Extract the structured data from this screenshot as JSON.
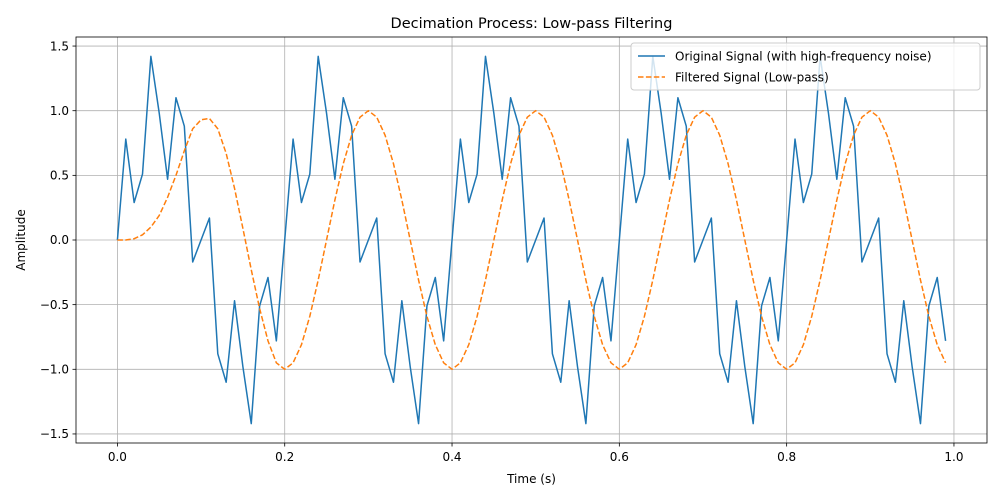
{
  "chart_data": {
    "type": "line",
    "title": "Decimation Process: Low-pass Filtering",
    "xlabel": "Time (s)",
    "ylabel": "Amplitude",
    "xlim": [
      -0.0495,
      1.0395
    ],
    "ylim": [
      -1.57,
      1.57
    ],
    "xticks": [
      0.0,
      0.2,
      0.4,
      0.6,
      0.8,
      1.0
    ],
    "xtick_labels": [
      "0.0",
      "0.2",
      "0.4",
      "0.6",
      "0.8",
      "1.0"
    ],
    "yticks": [
      -1.5,
      -1.0,
      -0.5,
      0.0,
      0.5,
      1.0,
      1.5
    ],
    "ytick_labels": [
      "−1.5",
      "−1.0",
      "−0.5",
      "0.0",
      "0.5",
      "1.0",
      "1.5"
    ],
    "grid": true,
    "legend_position": "top-right",
    "series": [
      {
        "name": "Original Signal (with high-frequency noise)",
        "color": "#1f77b4",
        "style": "solid",
        "x": [
          0.0,
          0.01,
          0.02,
          0.03,
          0.04,
          0.05,
          0.06,
          0.07,
          0.08,
          0.09,
          0.1,
          0.11,
          0.12,
          0.13,
          0.14,
          0.15,
          0.16,
          0.17,
          0.18,
          0.19,
          0.2,
          0.21,
          0.22,
          0.23,
          0.24,
          0.25,
          0.26,
          0.27,
          0.28,
          0.29,
          0.3,
          0.31,
          0.32,
          0.33,
          0.34,
          0.35,
          0.36,
          0.37,
          0.38,
          0.39,
          0.4,
          0.41,
          0.42,
          0.43,
          0.44,
          0.45,
          0.46,
          0.47,
          0.48,
          0.49,
          0.5,
          0.51,
          0.52,
          0.53,
          0.54,
          0.55,
          0.56,
          0.57,
          0.58,
          0.59,
          0.6,
          0.61,
          0.62,
          0.63,
          0.64,
          0.65,
          0.66,
          0.67,
          0.68,
          0.69,
          0.7,
          0.71,
          0.72,
          0.73,
          0.74,
          0.75,
          0.76,
          0.77,
          0.78,
          0.79,
          0.8,
          0.81,
          0.82,
          0.83,
          0.84,
          0.85,
          0.86,
          0.87,
          0.88,
          0.89,
          0.9,
          0.91,
          0.92,
          0.93,
          0.94,
          0.95,
          0.96,
          0.97,
          0.98,
          0.99
        ],
        "y": [
          0.0,
          0.78,
          0.29,
          0.51,
          1.42,
          0.98,
          0.47,
          1.1,
          0.88,
          -0.17,
          0.0,
          0.17,
          -0.88,
          -1.1,
          -0.47,
          -0.98,
          -1.42,
          -0.51,
          -0.29,
          -0.78,
          0.0,
          0.78,
          0.29,
          0.51,
          1.42,
          0.98,
          0.47,
          1.1,
          0.88,
          -0.17,
          0.0,
          0.17,
          -0.88,
          -1.1,
          -0.47,
          -0.98,
          -1.42,
          -0.51,
          -0.29,
          -0.78,
          0.0,
          0.78,
          0.29,
          0.51,
          1.42,
          0.98,
          0.47,
          1.1,
          0.88,
          -0.17,
          0.0,
          0.17,
          -0.88,
          -1.1,
          -0.47,
          -0.98,
          -1.42,
          -0.51,
          -0.29,
          -0.78,
          0.0,
          0.78,
          0.29,
          0.51,
          1.42,
          0.98,
          0.47,
          1.1,
          0.88,
          -0.17,
          0.0,
          0.17,
          -0.88,
          -1.1,
          -0.47,
          -0.98,
          -1.42,
          -0.51,
          -0.29,
          -0.78,
          0.0,
          0.78,
          0.29,
          0.51,
          1.42,
          0.98,
          0.47,
          1.1,
          0.88,
          -0.17,
          0.0,
          0.17,
          -0.88,
          -1.1,
          -0.47,
          -0.98,
          -1.42,
          -0.51,
          -0.29,
          -0.78
        ]
      },
      {
        "name": "Filtered Signal (Low-pass)",
        "color": "#ff7f0e",
        "style": "dashed",
        "x": [
          0.0,
          0.01,
          0.02,
          0.03,
          0.04,
          0.05,
          0.06,
          0.07,
          0.08,
          0.09,
          0.1,
          0.11,
          0.12,
          0.13,
          0.14,
          0.15,
          0.16,
          0.17,
          0.18,
          0.19,
          0.2,
          0.21,
          0.22,
          0.23,
          0.24,
          0.25,
          0.26,
          0.27,
          0.28,
          0.29,
          0.3,
          0.31,
          0.32,
          0.33,
          0.34,
          0.35,
          0.36,
          0.37,
          0.38,
          0.39,
          0.4,
          0.41,
          0.42,
          0.43,
          0.44,
          0.45,
          0.46,
          0.47,
          0.48,
          0.49,
          0.5,
          0.51,
          0.52,
          0.53,
          0.54,
          0.55,
          0.56,
          0.57,
          0.58,
          0.59,
          0.6,
          0.61,
          0.62,
          0.63,
          0.64,
          0.65,
          0.66,
          0.67,
          0.68,
          0.69,
          0.7,
          0.71,
          0.72,
          0.73,
          0.74,
          0.75,
          0.76,
          0.77,
          0.78,
          0.79,
          0.8,
          0.81,
          0.82,
          0.83,
          0.84,
          0.85,
          0.86,
          0.87,
          0.88,
          0.89,
          0.9,
          0.91,
          0.92,
          0.93,
          0.94,
          0.95,
          0.96,
          0.97,
          0.98,
          0.99
        ],
        "y": [
          0.0,
          0.0,
          0.01,
          0.04,
          0.1,
          0.19,
          0.33,
          0.5,
          0.69,
          0.86,
          0.93,
          0.94,
          0.86,
          0.67,
          0.4,
          0.09,
          -0.23,
          -0.53,
          -0.78,
          -0.95,
          -1.0,
          -0.95,
          -0.81,
          -0.59,
          -0.31,
          0.0,
          0.31,
          0.59,
          0.81,
          0.95,
          1.0,
          0.95,
          0.81,
          0.59,
          0.31,
          0.0,
          -0.31,
          -0.59,
          -0.81,
          -0.95,
          -1.0,
          -0.95,
          -0.81,
          -0.59,
          -0.31,
          0.0,
          0.31,
          0.59,
          0.81,
          0.95,
          1.0,
          0.95,
          0.81,
          0.59,
          0.31,
          0.0,
          -0.31,
          -0.59,
          -0.81,
          -0.95,
          -1.0,
          -0.95,
          -0.81,
          -0.59,
          -0.31,
          0.0,
          0.31,
          0.59,
          0.81,
          0.95,
          1.0,
          0.95,
          0.81,
          0.59,
          0.31,
          0.0,
          -0.31,
          -0.59,
          -0.81,
          -0.95,
          -1.0,
          -0.95,
          -0.81,
          -0.59,
          -0.31,
          0.0,
          0.31,
          0.59,
          0.81,
          0.95,
          1.0,
          0.95,
          0.81,
          0.59,
          0.31,
          0.0,
          -0.31,
          -0.59,
          -0.81,
          -0.95
        ]
      }
    ]
  }
}
